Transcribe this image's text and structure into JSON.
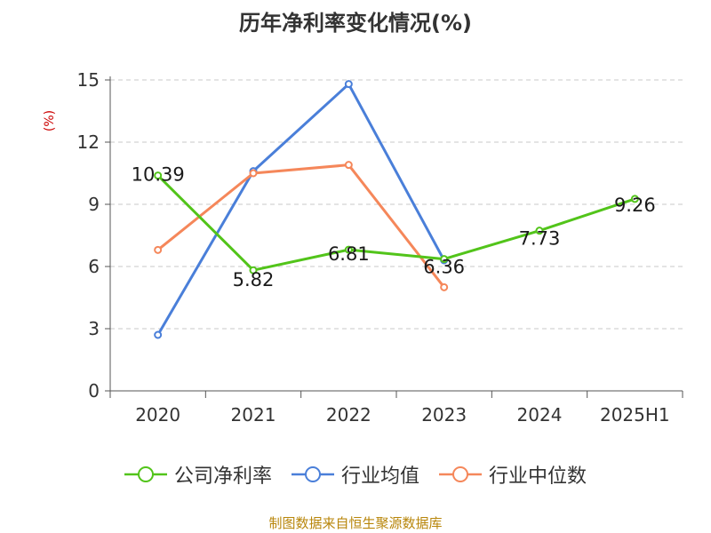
{
  "chart_data": {
    "type": "line",
    "title": "历年净利率变化情况(%)",
    "ylabel": "(%)",
    "xlabel": "",
    "categories": [
      "2020",
      "2021",
      "2022",
      "2023",
      "2024",
      "2025H1"
    ],
    "ylim": [
      0,
      15
    ],
    "yticks": [
      0,
      3,
      6,
      9,
      12,
      15
    ],
    "grid": true,
    "legend_position": "bottom",
    "series": [
      {
        "name": "公司净利率",
        "color": "#52c41a",
        "values": [
          10.39,
          5.82,
          6.81,
          6.36,
          7.73,
          9.26
        ],
        "labels": [
          "10.39",
          "5.82",
          "6.81",
          "6.36",
          "7.73",
          "9.26"
        ]
      },
      {
        "name": "行业均值",
        "color": "#4a7fd9",
        "values": [
          2.7,
          10.6,
          14.8,
          6.3,
          null,
          null
        ]
      },
      {
        "name": "行业中位数",
        "color": "#f5875a",
        "values": [
          6.8,
          10.5,
          10.9,
          5.0,
          null,
          null
        ]
      }
    ]
  },
  "footer": {
    "source": "制图数据来自恒生聚源数据库"
  }
}
